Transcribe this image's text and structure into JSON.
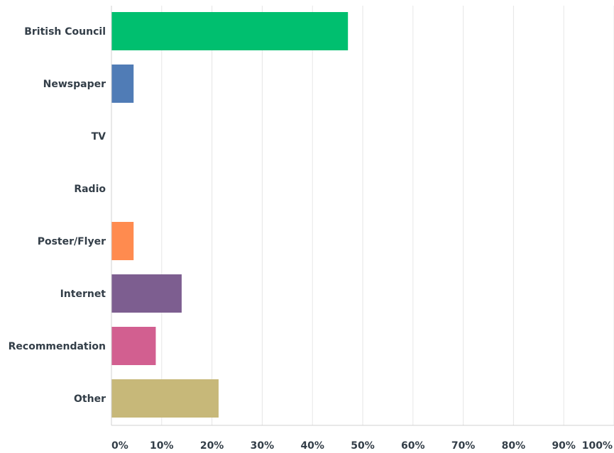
{
  "chart_data": {
    "type": "bar",
    "orientation": "horizontal",
    "categories": [
      "British Council",
      "Newspaper",
      "TV",
      "Radio",
      "Poster/Flyer",
      "Internet",
      "Recommendation",
      "Other"
    ],
    "values": [
      47.06,
      4.41,
      0,
      0,
      4.41,
      13.97,
      8.82,
      21.32
    ],
    "colors": [
      "#00bf6f",
      "#507cb6",
      "#6bc8cd",
      "#f9be00",
      "#ff8b4f",
      "#7d5e90",
      "#d25f90",
      "#c7b879"
    ],
    "xlim": [
      0,
      100
    ],
    "x_ticks": [
      "0%",
      "10%",
      "20%",
      "30%",
      "40%",
      "50%",
      "60%",
      "70%",
      "80%",
      "90%",
      "100%"
    ],
    "grid": true,
    "title": "",
    "xlabel": "",
    "ylabel": ""
  }
}
